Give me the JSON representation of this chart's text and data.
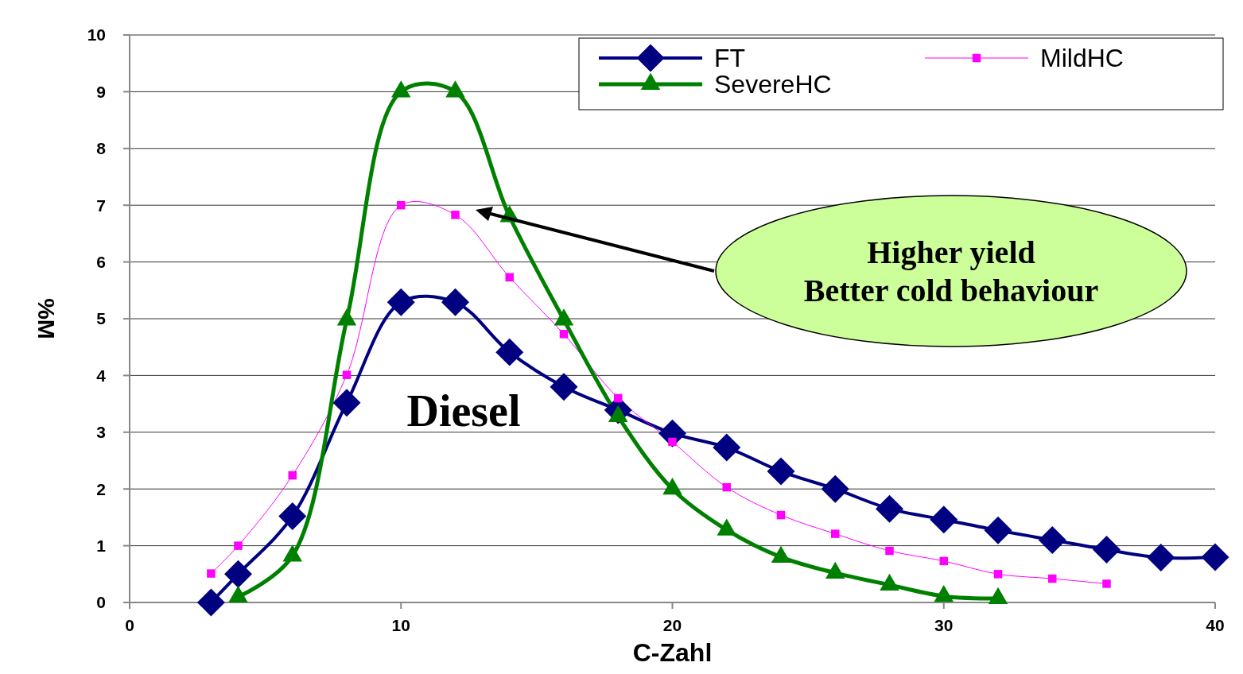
{
  "chart_data": {
    "type": "line",
    "xlabel": "C-Zahl",
    "ylabel": "%M",
    "xlim": [
      0,
      40
    ],
    "xticks": [
      0,
      10,
      20,
      30,
      40
    ],
    "ylim": [
      0,
      10
    ],
    "yticks": [
      0,
      1,
      2,
      3,
      4,
      5,
      6,
      7,
      8,
      9,
      10
    ],
    "grid": "y",
    "legend": "top right",
    "annotations": [
      "Higher yield\nBetter cold behaviour",
      "Diesel"
    ],
    "series": [
      {
        "name": "FT",
        "color": "#000080",
        "marker": "diamond",
        "x": [
          3,
          4,
          6,
          8,
          10,
          12,
          14,
          16,
          18,
          20,
          22,
          24,
          26,
          28,
          30,
          32,
          34,
          36,
          38,
          40
        ],
        "values": [
          0,
          0.5,
          1.52,
          3.52,
          5.29,
          5.29,
          4.41,
          3.8,
          3.39,
          2.98,
          2.73,
          2.31,
          2.0,
          1.65,
          1.46,
          1.27,
          1.1,
          0.93,
          0.79,
          0.8
        ]
      },
      {
        "name": "MildHC",
        "color": "#ff00ff",
        "marker": "square",
        "x": [
          3,
          4,
          6,
          8,
          10,
          12,
          14,
          16,
          18,
          20,
          22,
          24,
          26,
          28,
          30,
          32,
          34,
          36
        ],
        "values": [
          0.51,
          1.0,
          2.24,
          4.01,
          7.0,
          6.83,
          5.73,
          4.73,
          3.6,
          2.83,
          2.03,
          1.54,
          1.21,
          0.91,
          0.73,
          0.5,
          0.42,
          0.33
        ]
      },
      {
        "name": "SevereHC",
        "color": "#008000",
        "marker": "triangle",
        "x": [
          4,
          6,
          8,
          10,
          12,
          14,
          16,
          18,
          20,
          22,
          24,
          26,
          28,
          30,
          32
        ],
        "values": [
          0.1,
          0.82,
          4.98,
          9.0,
          9.0,
          6.8,
          4.98,
          3.28,
          2.0,
          1.28,
          0.8,
          0.52,
          0.31,
          0.11,
          0.07
        ]
      }
    ]
  }
}
